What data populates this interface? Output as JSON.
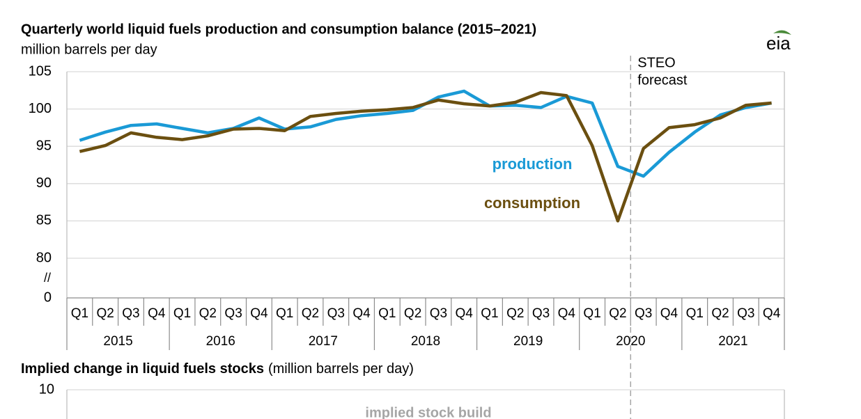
{
  "chart_data": [
    {
      "type": "line",
      "title": "Quarterly world liquid fuels production and consumption balance (2015–2021)",
      "subtitle": "million barrels per day",
      "logo": "eia",
      "categories": [
        "Q1",
        "Q2",
        "Q3",
        "Q4",
        "Q1",
        "Q2",
        "Q3",
        "Q4",
        "Q1",
        "Q2",
        "Q3",
        "Q4",
        "Q1",
        "Q2",
        "Q3",
        "Q4",
        "Q1",
        "Q2",
        "Q3",
        "Q4",
        "Q1",
        "Q2",
        "Q3",
        "Q4",
        "Q1",
        "Q2",
        "Q3",
        "Q4"
      ],
      "years": [
        "2015",
        "2016",
        "2017",
        "2018",
        "2019",
        "2020",
        "2021"
      ],
      "series": [
        {
          "name": "production",
          "color": "#1a9ad6",
          "values": [
            95.8,
            96.9,
            97.8,
            98.0,
            97.4,
            96.8,
            97.4,
            98.8,
            97.3,
            97.6,
            98.6,
            99.1,
            99.4,
            99.8,
            101.6,
            102.4,
            100.4,
            100.5,
            100.2,
            101.7,
            100.8,
            92.3,
            91.0,
            94.2,
            96.9,
            99.2,
            100.2,
            100.8
          ]
        },
        {
          "name": "consumption",
          "color": "#6b4f10",
          "values": [
            94.3,
            95.1,
            96.8,
            96.2,
            95.9,
            96.4,
            97.3,
            97.4,
            97.1,
            99.0,
            99.4,
            99.7,
            99.9,
            100.2,
            101.2,
            100.7,
            100.4,
            100.9,
            102.2,
            101.8,
            95.1,
            85.0,
            94.7,
            97.5,
            97.9,
            98.8,
            100.5,
            100.8
          ]
        }
      ],
      "ylim": [
        0,
        105
      ],
      "yticks": [
        0,
        80,
        85,
        90,
        95,
        100,
        105
      ],
      "axis_break": [
        0,
        80
      ],
      "axis_break_label": "//",
      "grid": true,
      "forecast_start_index": 22,
      "forecast_label": [
        "STEO",
        "forecast"
      ]
    },
    {
      "type": "bar",
      "title": "Implied change in liquid fuels stocks",
      "title_suffix": "(million barrels per day)",
      "yticks": [
        10
      ],
      "annotation": "implied stock build"
    }
  ]
}
